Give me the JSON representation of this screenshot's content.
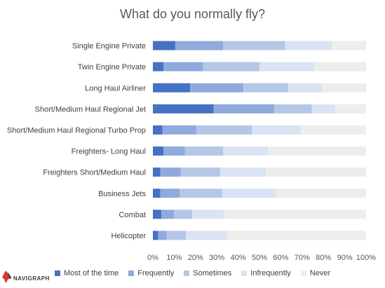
{
  "chart_data": {
    "type": "bar",
    "orientation": "horizontal",
    "stacked": true,
    "title": "What do you normally fly?",
    "categories": [
      "Single Engine Private",
      "Twin Engine Private",
      "Long Haul Airliner",
      "Short/Medium Haul Regional Jet",
      "Short/Medium Haul Regional Turbo Prop",
      "Freighters- Long Haul",
      "Freighters Short/Medium Haul",
      "Business Jets",
      "Combat",
      "Helicopter"
    ],
    "series": [
      {
        "name": "Most of the time",
        "color": "#4472c4",
        "values": [
          10.5,
          5,
          17.5,
          28.5,
          4.5,
          5,
          3.5,
          3.5,
          4,
          2.5
        ]
      },
      {
        "name": "Frequently",
        "color": "#8faadc",
        "values": [
          22.5,
          18.5,
          25,
          28.5,
          16,
          10,
          9.5,
          9,
          6,
          4
        ]
      },
      {
        "name": "Sometimes",
        "color": "#b4c7e7",
        "values": [
          29,
          26.5,
          21,
          17.5,
          26,
          18,
          18.5,
          20,
          8.5,
          9
        ]
      },
      {
        "name": "Infrequently",
        "color": "#dae3f3",
        "values": [
          22,
          25.5,
          16,
          11,
          23,
          21,
          21.5,
          25.5,
          15,
          19.5
        ]
      },
      {
        "name": "Never",
        "color": "#ededed",
        "values": [
          16,
          24.5,
          20.5,
          14.5,
          30.5,
          46,
          47,
          42,
          66.5,
          65
        ]
      }
    ],
    "xlim": [
      0,
      100
    ],
    "xticks": [
      "0%",
      "10%",
      "20%",
      "30%",
      "40%",
      "50%",
      "60%",
      "70%",
      "80%",
      "90%",
      "100%"
    ],
    "legend_position": "bottom",
    "grid": false
  },
  "branding": {
    "logo_text": "NAVIGRAPH",
    "logo_icon": "navigraph-plane-icon"
  }
}
